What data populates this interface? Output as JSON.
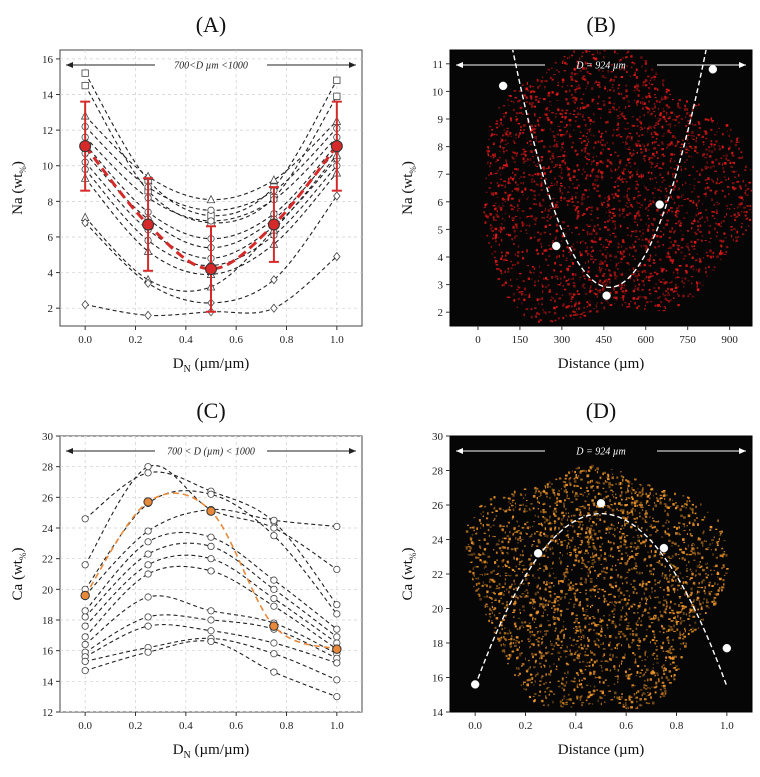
{
  "chart_data": [
    {
      "id": "A",
      "panel_label": "(A)",
      "type": "line",
      "xlabel": "D",
      "xlabel_sub": "N",
      "xlabel_unit": " (µm/µm)",
      "ylabel": "Na (wt",
      "ylabel_sub": "%",
      "ylabel_end": ")",
      "xlim": [
        -0.1,
        1.1
      ],
      "ylim": [
        1,
        16.5
      ],
      "xticks": [
        0.0,
        0.2,
        0.4,
        0.6,
        0.8,
        1.0
      ],
      "xtick_labels": [
        "0.0",
        "0.2",
        "0.4",
        "0.6",
        "0.8",
        "1.0"
      ],
      "yticks": [
        2,
        4,
        6,
        8,
        10,
        12,
        14,
        16
      ],
      "ytick_labels": [
        "2",
        "4",
        "6",
        "8",
        "10",
        "12",
        "14",
        "16"
      ],
      "grid": true,
      "annotation": "700<D µm <1000",
      "x": [
        0,
        0.25,
        0.5,
        0.75,
        1.0
      ],
      "series": [
        {
          "values": [
            15.2,
            9.2,
            7.2,
            8.8,
            14.8
          ],
          "marker": "square"
        },
        {
          "values": [
            14.5,
            8.6,
            6.8,
            8.2,
            13.9
          ],
          "marker": "square"
        },
        {
          "values": [
            12.8,
            9.4,
            8.1,
            9.2,
            12.5
          ],
          "marker": "triangle"
        },
        {
          "values": [
            12.2,
            8.8,
            7.5,
            8.6,
            12.1
          ],
          "marker": "circle"
        },
        {
          "values": [
            11.6,
            8.2,
            6.9,
            8.1,
            11.6
          ],
          "marker": "circle"
        },
        {
          "values": [
            11.2,
            7.4,
            5.9,
            7.3,
            11.2
          ],
          "marker": "circle"
        },
        {
          "values": [
            10.7,
            7.0,
            5.4,
            7.0,
            10.9
          ],
          "marker": "circle"
        },
        {
          "values": [
            10.2,
            6.4,
            4.8,
            6.6,
            10.4
          ],
          "marker": "circle"
        },
        {
          "values": [
            9.8,
            5.8,
            4.4,
            6.1,
            10.0
          ],
          "marker": "circle"
        },
        {
          "values": [
            9.3,
            5.2,
            3.9,
            5.6,
            9.6
          ],
          "marker": "triangle"
        },
        {
          "values": [
            7.1,
            3.6,
            3.2,
            6.4,
            10.6
          ],
          "marker": "triangle"
        },
        {
          "values": [
            6.8,
            3.4,
            2.3,
            3.6,
            8.3
          ],
          "marker": "diamond"
        },
        {
          "values": [
            2.2,
            1.6,
            1.8,
            2.0,
            4.9
          ],
          "marker": "diamond"
        }
      ],
      "mean": {
        "values": [
          11.1,
          6.7,
          4.2,
          6.7,
          11.1
        ],
        "error": [
          2.5,
          2.6,
          2.4,
          2.1,
          2.5
        ],
        "color": "#d62a2a"
      }
    },
    {
      "id": "B",
      "panel_label": "(B)",
      "type": "scatter",
      "xlabel": "Distance (µm)",
      "ylabel": "Na (wt",
      "ylabel_sub": "%",
      "ylabel_end": ")",
      "xlim": [
        -100,
        980
      ],
      "ylim": [
        1.5,
        11.5
      ],
      "xticks": [
        0,
        150,
        300,
        450,
        600,
        750,
        900
      ],
      "xtick_labels": [
        "0",
        "150",
        "300",
        "450",
        "600",
        "750",
        "900"
      ],
      "yticks": [
        2,
        3,
        4,
        5,
        6,
        7,
        8,
        9,
        10,
        11
      ],
      "ytick_labels": [
        "2",
        "3",
        "4",
        "5",
        "6",
        "7",
        "8",
        "9",
        "10",
        "11"
      ],
      "annotation": "D = 924 µm",
      "points_x": [
        90,
        280,
        460,
        650,
        840
      ],
      "points_y": [
        10.2,
        4.4,
        2.6,
        5.9,
        10.8
      ],
      "fit": {
        "a": 7.2e-05,
        "h": 470,
        "k": 2.9
      },
      "map_color": "#e01818"
    },
    {
      "id": "C",
      "panel_label": "(C)",
      "type": "line",
      "xlabel": "D",
      "xlabel_sub": "N",
      "xlabel_unit": " (µm/µm)",
      "ylabel": "Ca (wt",
      "ylabel_sub": "%",
      "ylabel_end": ")",
      "xlim": [
        -0.1,
        1.1
      ],
      "ylim": [
        12,
        30
      ],
      "xticks": [
        0.0,
        0.2,
        0.4,
        0.6,
        0.8,
        1.0
      ],
      "xtick_labels": [
        "0.0",
        "0.2",
        "0.4",
        "0.6",
        "0.8",
        "1.0"
      ],
      "yticks": [
        12,
        14,
        16,
        18,
        20,
        22,
        24,
        26,
        28,
        30
      ],
      "ytick_labels": [
        "12",
        "14",
        "16",
        "18",
        "20",
        "22",
        "24",
        "26",
        "28",
        "30"
      ],
      "grid": true,
      "annotation": "700 < D (µm) < 1000",
      "x": [
        0,
        0.25,
        0.5,
        0.75,
        1.0
      ],
      "series": [
        {
          "values": [
            24.6,
            27.6,
            26.4,
            24.4,
            19.0
          ]
        },
        {
          "values": [
            21.6,
            28.0,
            25.2,
            24.0,
            21.3
          ]
        },
        {
          "values": [
            20.0,
            25.6,
            26.2,
            23.5,
            18.4
          ]
        },
        {
          "values": [
            19.6,
            23.8,
            25.2,
            24.5,
            24.1
          ]
        },
        {
          "values": [
            18.6,
            23.1,
            23.4,
            20.6,
            17.4
          ]
        },
        {
          "values": [
            18.2,
            22.3,
            22.8,
            20.0,
            16.9
          ]
        },
        {
          "values": [
            17.6,
            21.6,
            22.0,
            19.4,
            16.5
          ]
        },
        {
          "values": [
            16.9,
            21.0,
            21.2,
            18.9,
            16.1
          ]
        },
        {
          "values": [
            16.4,
            19.5,
            18.6,
            17.8,
            15.8
          ]
        },
        {
          "values": [
            15.9,
            18.2,
            18.0,
            17.4,
            15.5
          ]
        },
        {
          "values": [
            15.6,
            17.6,
            17.3,
            16.5,
            15.2
          ]
        },
        {
          "values": [
            15.3,
            16.2,
            16.8,
            15.8,
            14.1
          ]
        },
        {
          "values": [
            14.7,
            15.9,
            16.6,
            14.6,
            13.0
          ]
        }
      ],
      "mean": {
        "values": [
          19.6,
          25.7,
          25.1,
          17.6,
          16.1
        ],
        "color": "#e8893a"
      }
    },
    {
      "id": "D",
      "panel_label": "(D)",
      "type": "scatter",
      "xlabel": "Distance (µm)",
      "ylabel": "Ca (wt",
      "ylabel_sub": "%",
      "ylabel_end": ")",
      "xlim": [
        -0.1,
        1.1
      ],
      "ylim": [
        14,
        30
      ],
      "xticks": [
        0.0,
        0.2,
        0.4,
        0.6,
        0.8,
        1.0
      ],
      "xtick_labels": [
        "0.0",
        "0.2",
        "0.4",
        "0.6",
        "0.8",
        "1.0"
      ],
      "yticks": [
        14,
        16,
        18,
        20,
        22,
        24,
        26,
        28,
        30
      ],
      "ytick_labels": [
        "14",
        "16",
        "18",
        "20",
        "22",
        "24",
        "26",
        "28",
        "30"
      ],
      "annotation": "D = 924 µm",
      "points_x": [
        0.0,
        0.25,
        0.5,
        0.75,
        1.0
      ],
      "points_y": [
        15.6,
        23.2,
        26.1,
        23.5,
        17.7
      ],
      "fit": {
        "a": -40,
        "h": 0.5,
        "k": 25.5
      },
      "map_color": "#f0962a"
    }
  ]
}
